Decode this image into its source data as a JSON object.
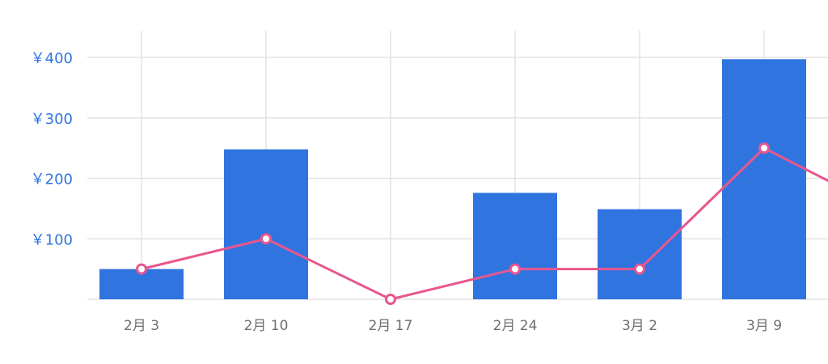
{
  "chart_data": {
    "type": "bar",
    "categories": [
      "2月 3",
      "2月 10",
      "2月 17",
      "2月 24",
      "3月 2",
      "3月 9",
      ""
    ],
    "series": [
      {
        "type": "bar",
        "values": [
          50,
          248,
          0,
          176,
          149,
          397,
          null
        ]
      },
      {
        "type": "line",
        "values": [
          50,
          100,
          0,
          50,
          50,
          250,
          145
        ]
      }
    ],
    "y_ticks": [
      {
        "value": 100,
        "label": "￥100"
      },
      {
        "value": 200,
        "label": "￥200"
      },
      {
        "value": 300,
        "label": "￥300"
      },
      {
        "value": 400,
        "label": "￥400"
      }
    ],
    "ylim": [
      0,
      400
    ],
    "grid": true,
    "colors": {
      "bar": "#3074e0",
      "line": "#e8578e",
      "grid": "#e3e3e3",
      "ytick": "#3074e0",
      "xtick": "#6f6f6f"
    }
  }
}
